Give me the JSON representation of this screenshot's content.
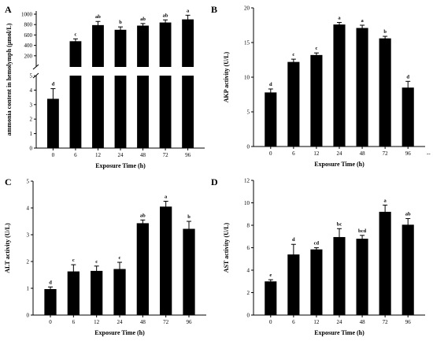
{
  "chart_data": [
    {
      "panel": "A",
      "type": "bar",
      "categories": [
        "0",
        "6",
        "12",
        "24",
        "48",
        "72",
        "96"
      ],
      "values": [
        3.4,
        480,
        790,
        700,
        780,
        840,
        900
      ],
      "errors": [
        0.7,
        45,
        70,
        55,
        40,
        50,
        80
      ],
      "letters": [
        "d",
        "c",
        "ab",
        "b",
        "ab",
        "ab",
        "a"
      ],
      "xlabel": "Exposure Time (h)",
      "ylabel": "ammonia content in hemolymph (μmol/L)",
      "broken_axis": true,
      "lower_ylim": [
        0,
        5
      ],
      "lower_ticks": [
        "0",
        "1",
        "2",
        "3",
        "4",
        "5"
      ],
      "upper_ylim": [
        0,
        1000
      ],
      "upper_ticks": [
        "200",
        "400",
        "600",
        "800",
        "1000"
      ]
    },
    {
      "panel": "B",
      "type": "bar",
      "categories": [
        "0",
        "6",
        "12",
        "24",
        "48",
        "72",
        "96"
      ],
      "values": [
        7.8,
        12.2,
        13.2,
        17.6,
        17.1,
        15.6,
        8.5
      ],
      "errors": [
        0.5,
        0.4,
        0.3,
        0.3,
        0.4,
        0.3,
        0.9
      ],
      "letters": [
        "d",
        "c",
        "c",
        "a",
        "a",
        "b",
        "d"
      ],
      "xlabel": "Exposure Time (h)",
      "ylabel": "AKP activity (U/L)",
      "ylim": [
        0,
        20
      ],
      "yticks": [
        "0",
        "5",
        "10",
        "15",
        "20"
      ],
      "trailing_mark": "--"
    },
    {
      "panel": "C",
      "type": "bar",
      "categories": [
        "0",
        "6",
        "12",
        "24",
        "48",
        "72",
        "96"
      ],
      "values": [
        0.97,
        1.63,
        1.65,
        1.72,
        3.43,
        4.05,
        3.22
      ],
      "errors": [
        0.08,
        0.25,
        0.18,
        0.25,
        0.12,
        0.2,
        0.28
      ],
      "letters": [
        "d",
        "c",
        "c",
        "c",
        "ab",
        "a",
        "b"
      ],
      "xlabel": "Exposure Time (h)",
      "ylabel": "ALT activity (U/L)",
      "ylim": [
        0,
        5
      ],
      "yticks": [
        "0",
        "1",
        "2",
        "3",
        "4",
        "5"
      ]
    },
    {
      "panel": "D",
      "type": "bar",
      "categories": [
        "0",
        "6",
        "12",
        "24",
        "48",
        "72",
        "96"
      ],
      "values": [
        3.0,
        5.4,
        5.85,
        6.95,
        6.8,
        9.2,
        8.05
      ],
      "errors": [
        0.15,
        0.9,
        0.15,
        0.75,
        0.3,
        0.6,
        0.55
      ],
      "letters": [
        "e",
        "d",
        "cd",
        "bc",
        "bcd",
        "a",
        "ab"
      ],
      "xlabel": "Exposure Time (h)",
      "ylabel": "AST activity (U/L)",
      "ylim": [
        0,
        12
      ],
      "yticks": [
        "0",
        "2",
        "4",
        "6",
        "8",
        "10",
        "12"
      ]
    }
  ]
}
